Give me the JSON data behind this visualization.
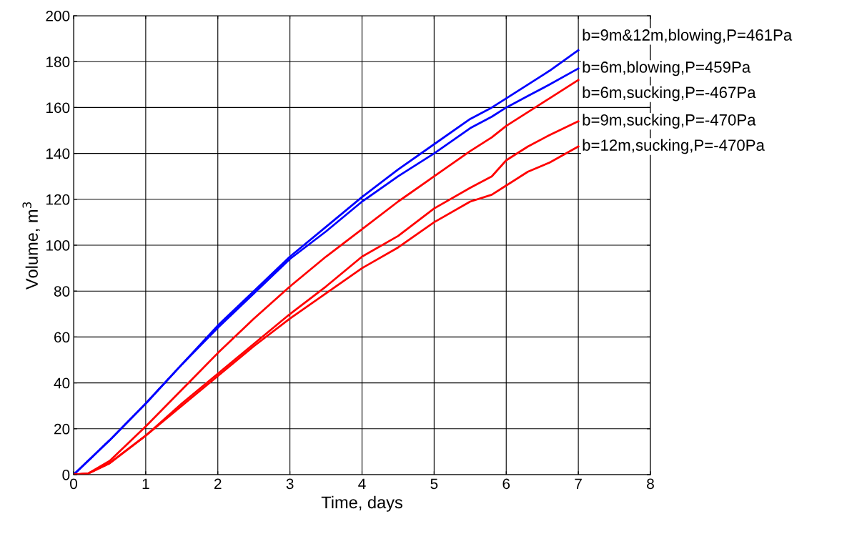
{
  "chart_data": {
    "type": "line",
    "xlabel": "Time, days",
    "ylabel": "Volume, m$^{3}$",
    "xlim": [
      0,
      8
    ],
    "ylim": [
      0,
      200
    ],
    "xticks": [
      0,
      1,
      2,
      3,
      4,
      5,
      6,
      7,
      8
    ],
    "yticks": [
      0,
      20,
      40,
      60,
      80,
      100,
      120,
      140,
      160,
      180,
      200
    ],
    "grid": true,
    "legend": false,
    "line_style": "solid",
    "marker": "none",
    "x": [
      0,
      0.2,
      0.5,
      1,
      1.5,
      2,
      2.5,
      3,
      3.5,
      4,
      4.5,
      5,
      5.5,
      5.8,
      6,
      6.3,
      6.6,
      7
    ],
    "series": [
      {
        "name": "b=9m&12m,blowing,P=461Pa",
        "color": "#0000ff",
        "values": [
          0,
          6,
          15,
          31,
          48,
          65,
          80,
          95,
          108,
          121,
          133,
          144,
          155,
          160,
          164,
          170,
          176,
          185
        ]
      },
      {
        "name": "b=6m,blowing,P=459Pa",
        "color": "#0000ff",
        "values": [
          0,
          6,
          15,
          31,
          48,
          64,
          79,
          94,
          106,
          119,
          130,
          140,
          151,
          156,
          160,
          165,
          170,
          177
        ]
      },
      {
        "name": "b=6m,sucking,P=-467Pa",
        "color": "#ff0000",
        "values": [
          0,
          0.5,
          6,
          21,
          37,
          53,
          68,
          82,
          95,
          107,
          119,
          130,
          141,
          147,
          152,
          158,
          164,
          172
        ]
      },
      {
        "name": "b=9m,sucking,P=-470Pa",
        "color": "#ff0000",
        "values": [
          0,
          0.5,
          5,
          17,
          31,
          44,
          57,
          70,
          82,
          95,
          104,
          116,
          125,
          130,
          137,
          143,
          148,
          154
        ]
      },
      {
        "name": "b=12m,sucking,P=-470Pa",
        "color": "#ff0000",
        "values": [
          0,
          0.5,
          5,
          17,
          30,
          43,
          56,
          68,
          79,
          90,
          99,
          110,
          119,
          122,
          126,
          132,
          136,
          143
        ]
      }
    ]
  }
}
